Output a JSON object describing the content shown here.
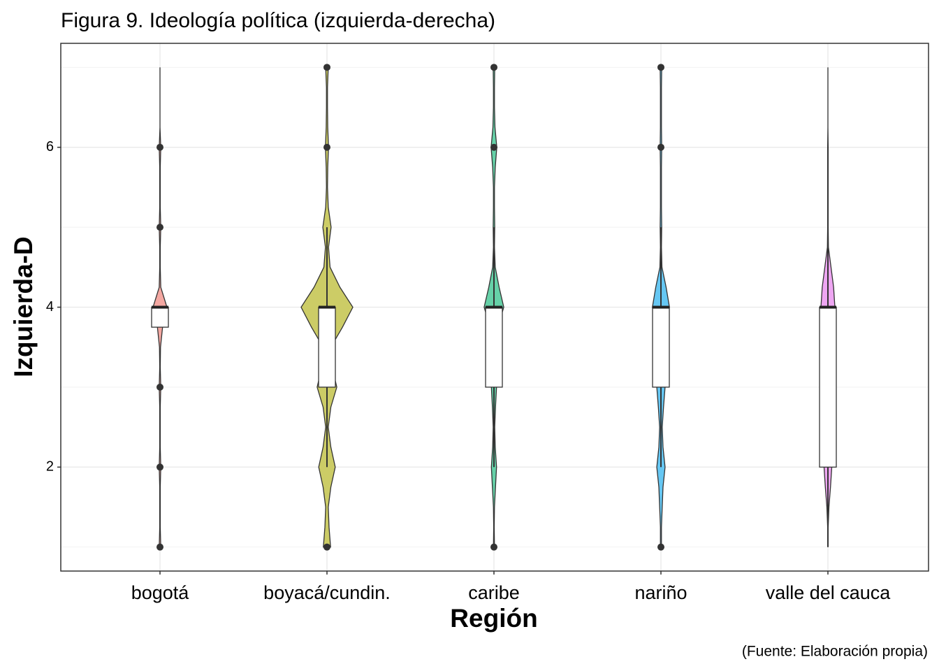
{
  "chart_data": {
    "type": "violin",
    "title": "Figura 9. Ideología política (izquierda-derecha)",
    "x_label": "Región",
    "y_label": "Izquierda-D",
    "caption": "(Fuente: Elaboración propia)",
    "categories": [
      "bogotá",
      "boyacá/cundin.",
      "caribe",
      "nariño",
      "valle del cauca"
    ],
    "colors": [
      "#f4a8a2",
      "#cccc66",
      "#66d1a8",
      "#66c7f3",
      "#eea6f2"
    ],
    "ylim": [
      0.7,
      7.3
    ],
    "yticks": [
      2,
      4,
      6
    ],
    "minor_yticks": [
      1,
      3,
      5,
      7
    ],
    "grid": true,
    "violin_y": [
      1,
      1.25,
      1.5,
      1.75,
      2,
      2.25,
      2.5,
      2.75,
      3,
      3.25,
      3.5,
      3.75,
      4,
      4.25,
      4.5,
      4.75,
      5,
      5.25,
      5.5,
      5.75,
      6,
      6.25,
      6.5,
      6.75,
      7
    ],
    "violins": [
      [
        0.03,
        0.01,
        0.01,
        0.01,
        0.03,
        0.01,
        0.01,
        0.01,
        0.03,
        0.01,
        0.02,
        0.1,
        0.27,
        0.03,
        0.01,
        0.01,
        0.03,
        0.01,
        0.01,
        0.01,
        0.03,
        0,
        0,
        0,
        0
      ],
      [
        0.14,
        0.08,
        0.05,
        0.15,
        0.32,
        0.15,
        0.05,
        0.15,
        0.38,
        0.2,
        0.15,
        0.6,
        1,
        0.5,
        0.12,
        0.06,
        0.16,
        0.05,
        0.02,
        0.03,
        0.06,
        0.03,
        0.02,
        0.02,
        0.05
      ],
      [
        0.02,
        0.01,
        0.02,
        0.06,
        0.1,
        0.05,
        0.03,
        0.06,
        0.1,
        0.05,
        0.03,
        0.15,
        0.38,
        0.2,
        0.05,
        0.02,
        0.03,
        0.02,
        0.02,
        0.05,
        0.11,
        0.04,
        0.02,
        0.02,
        0.03
      ],
      [
        0.02,
        0.02,
        0.05,
        0.08,
        0.16,
        0.08,
        0.05,
        0.1,
        0.16,
        0.08,
        0.03,
        0.12,
        0.33,
        0.2,
        0.04,
        0.02,
        0.03,
        0.02,
        0.02,
        0.02,
        0.03,
        0.02,
        0.02,
        0.02,
        0.03
      ],
      [
        0,
        0.01,
        0.04,
        0.1,
        0.15,
        0.1,
        0.08,
        0.08,
        0.08,
        0.08,
        0.1,
        0.15,
        0.27,
        0.22,
        0.12,
        0.02,
        0.01,
        0.01,
        0.01,
        0.01,
        0.01,
        0,
        0,
        0,
        0
      ]
    ],
    "boxes": [
      {
        "q1": 3.75,
        "median": 4,
        "q3": 4,
        "lower": 3.75,
        "upper": 4,
        "outliers": [
          1,
          2,
          3,
          5,
          6
        ]
      },
      {
        "q1": 3,
        "median": 4,
        "q3": 4,
        "lower": 2,
        "upper": 5,
        "outliers": [
          1,
          6,
          7
        ]
      },
      {
        "q1": 3,
        "median": 4,
        "q3": 4,
        "lower": 2,
        "upper": 5,
        "outliers": [
          1,
          6,
          7
        ]
      },
      {
        "q1": 3,
        "median": 4,
        "q3": 4,
        "lower": 2,
        "upper": 5,
        "outliers": [
          1,
          6,
          7
        ]
      },
      {
        "q1": 2,
        "median": 4,
        "q3": 4,
        "lower": 1,
        "upper": 6,
        "outliers": []
      }
    ]
  }
}
